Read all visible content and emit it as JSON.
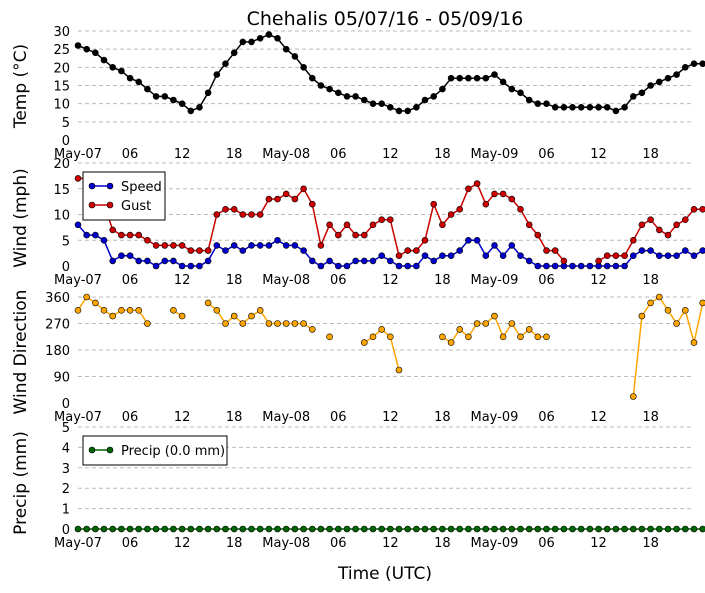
{
  "title": "Chehalis 05/07/16 - 05/09/16",
  "xlabel": "Time (UTC)",
  "x_tick_labels": [
    "May-07",
    "06",
    "12",
    "18",
    "May-08",
    "06",
    "12",
    "18",
    "May-09",
    "06",
    "12",
    "18"
  ],
  "x_tick_hours": [
    0,
    6,
    12,
    18,
    24,
    30,
    36,
    42,
    48,
    54,
    60,
    66
  ],
  "x_range_hours": [
    0,
    71
  ],
  "colors": {
    "temp": "#000000",
    "speed": "#0000cc",
    "gust": "#cc0000",
    "direction": "#ffa500",
    "precip": "#006400",
    "grid": "#bbbbbb"
  },
  "chart_data": [
    {
      "type": "line",
      "ylabel": "Temp (°C)",
      "ylim": [
        0,
        30
      ],
      "yticks": [
        0,
        5,
        10,
        15,
        20,
        25,
        30
      ],
      "grid": true,
      "series": [
        {
          "name": "",
          "x_start_hour": 0,
          "values": [
            26,
            25,
            24,
            22,
            20,
            19,
            17,
            16,
            14,
            12,
            12,
            11,
            10,
            8,
            9,
            13,
            18,
            21,
            24,
            27,
            27,
            28,
            29,
            28,
            25,
            23,
            20,
            17,
            15,
            14,
            13,
            12,
            12,
            11,
            10,
            10,
            9,
            8,
            8,
            9,
            11,
            12,
            14,
            17,
            17,
            17,
            17,
            17,
            18,
            16,
            14,
            13,
            11,
            10,
            10,
            9,
            9,
            9,
            9,
            9,
            9,
            9,
            8,
            9,
            12,
            13,
            15,
            16,
            17,
            18,
            20,
            21,
            21
          ]
        }
      ]
    },
    {
      "type": "line",
      "ylabel": "Wind (mph)",
      "ylim": [
        0,
        20
      ],
      "yticks": [
        0,
        5,
        10,
        15,
        20
      ],
      "grid": true,
      "legend": "top-left",
      "series": [
        {
          "name": "Speed",
          "x_start_hour": 0,
          "values": [
            8,
            6,
            6,
            5,
            1,
            2,
            2,
            1,
            1,
            0,
            1,
            1,
            0,
            0,
            0,
            1,
            4,
            3,
            4,
            3,
            4,
            4,
            4,
            5,
            4,
            4,
            3,
            1,
            0,
            1,
            0,
            0,
            1,
            1,
            1,
            2,
            1,
            0,
            0,
            0,
            2,
            1,
            2,
            2,
            3,
            5,
            5,
            2,
            4,
            2,
            4,
            2,
            1,
            0,
            0,
            0,
            0,
            0,
            0,
            0,
            0,
            0,
            0,
            0,
            2,
            3,
            3,
            2,
            2,
            2,
            3,
            2,
            3
          ]
        },
        {
          "name": "Gust",
          "x_start_hour": 0,
          "values": [
            17,
            17,
            17,
            12,
            7,
            6,
            6,
            6,
            5,
            4,
            4,
            4,
            4,
            3,
            3,
            3,
            10,
            11,
            11,
            10,
            10,
            10,
            13,
            13,
            14,
            13,
            15,
            12,
            4,
            8,
            6,
            8,
            6,
            6,
            8,
            9,
            9,
            2,
            3,
            3,
            5,
            12,
            8,
            10,
            11,
            15,
            16,
            12,
            14,
            14,
            13,
            11,
            8,
            6,
            3,
            3,
            1,
            null,
            null,
            null,
            1,
            2,
            2,
            2,
            5,
            8,
            9,
            7,
            6,
            8,
            9,
            11,
            11
          ]
        }
      ]
    },
    {
      "type": "line",
      "ylabel": "Wind Direction",
      "ylim": [
        0,
        360
      ],
      "yticks": [
        0,
        90,
        180,
        270,
        360
      ],
      "grid": true,
      "series": [
        {
          "name": "",
          "x_start_hour": 0,
          "values": [
            315,
            360,
            340,
            315,
            295,
            315,
            315,
            315,
            270,
            null,
            null,
            315,
            295,
            null,
            null,
            340,
            315,
            270,
            295,
            270,
            295,
            315,
            270,
            270,
            270,
            270,
            270,
            250,
            null,
            225,
            null,
            null,
            null,
            205,
            225,
            250,
            225,
            112,
            null,
            null,
            null,
            null,
            225,
            205,
            250,
            225,
            270,
            270,
            295,
            225,
            270,
            225,
            250,
            225,
            225,
            null,
            null,
            null,
            null,
            null,
            null,
            null,
            null,
            null,
            22,
            295,
            340,
            360,
            315,
            270,
            315,
            205,
            340
          ]
        }
      ]
    },
    {
      "type": "line",
      "ylabel": "Precip (mm)",
      "ylim": [
        0,
        5
      ],
      "yticks": [
        0,
        1,
        2,
        3,
        4,
        5
      ],
      "grid": true,
      "legend": "top-left",
      "series": [
        {
          "name": "Precip (0.0 mm)",
          "x_start_hour": 0,
          "values": [
            0,
            0,
            0,
            0,
            0,
            0,
            0,
            0,
            0,
            0,
            0,
            0,
            0,
            0,
            0,
            0,
            0,
            0,
            0,
            0,
            0,
            0,
            0,
            0,
            0,
            0,
            0,
            0,
            0,
            0,
            0,
            0,
            0,
            0,
            0,
            0,
            0,
            0,
            0,
            0,
            0,
            0,
            0,
            0,
            0,
            0,
            0,
            0,
            0,
            0,
            0,
            0,
            0,
            0,
            0,
            0,
            0,
            0,
            0,
            0,
            0,
            0,
            0,
            0,
            0,
            0,
            0,
            0,
            0,
            0,
            0,
            0,
            0
          ]
        }
      ]
    }
  ]
}
